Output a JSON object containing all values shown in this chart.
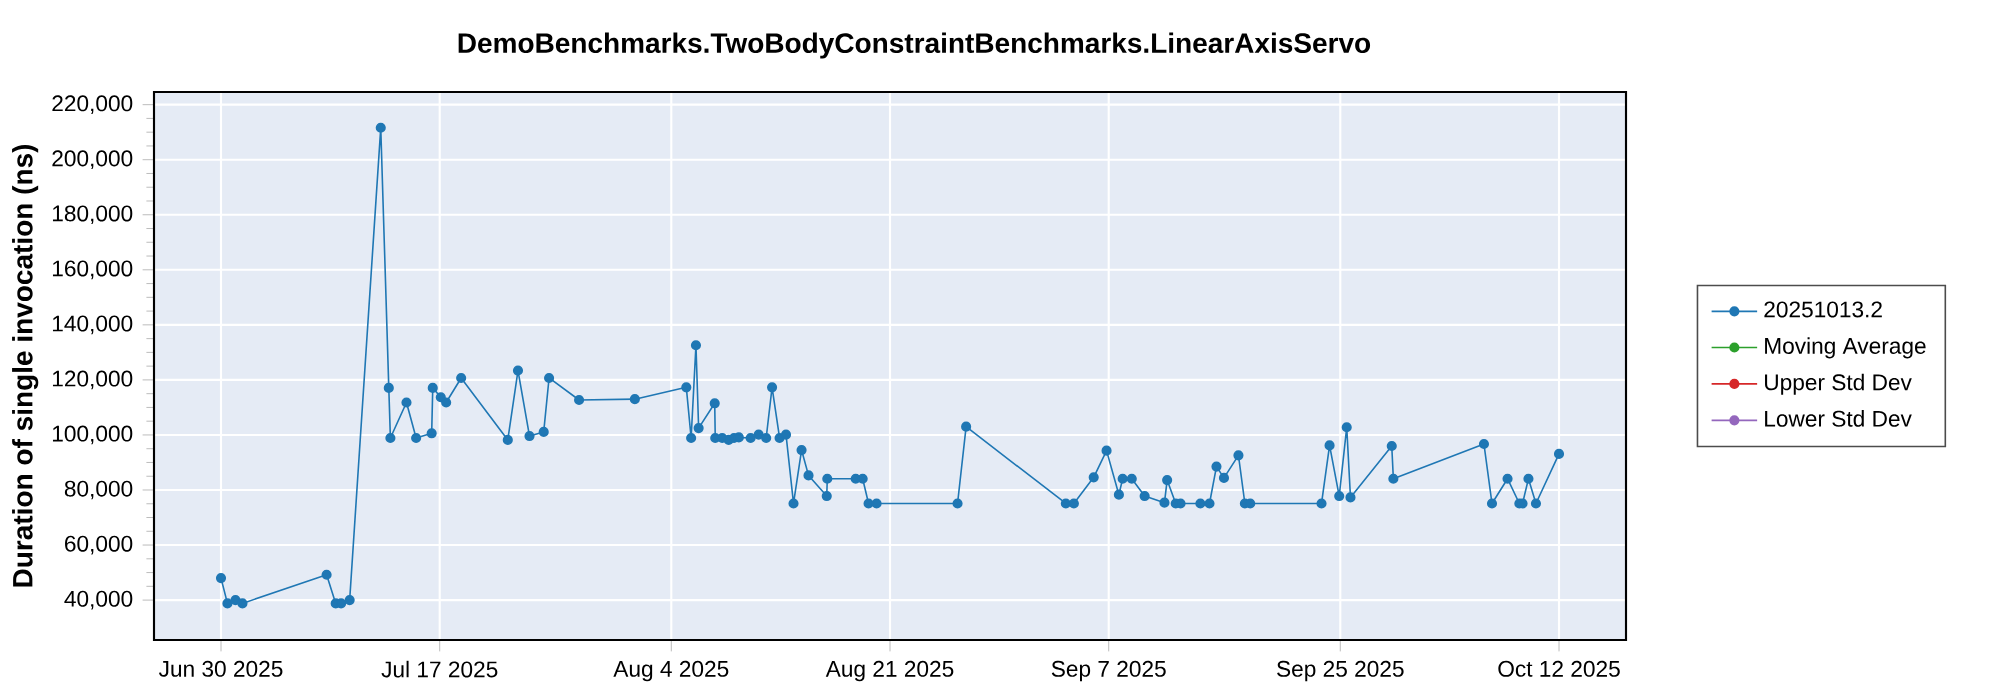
{
  "chart_data": {
    "type": "line",
    "title": "DemoBenchmarks.TwoBodyConstraintBenchmarks.LinearAxisServo",
    "ylabel": "Duration of single invocation (ns)",
    "xlim": [
      "2025-06-24T19:00",
      "2025-10-17T05:00"
    ],
    "ylim": [
      25500,
      224600
    ],
    "xticks": [
      {
        "value": "2025-06-30",
        "label": "Jun 30 2025"
      },
      {
        "value": "2025-07-17",
        "label": "Jul 17 2025"
      },
      {
        "value": "2025-08-04",
        "label": "Aug 4 2025"
      },
      {
        "value": "2025-08-21",
        "label": "Aug 21 2025"
      },
      {
        "value": "2025-09-07",
        "label": "Sep 7 2025"
      },
      {
        "value": "2025-09-25",
        "label": "Sep 25 2025"
      },
      {
        "value": "2025-10-12",
        "label": "Oct 12 2025"
      }
    ],
    "yticks": [
      {
        "value": 40000,
        "label": "40,000"
      },
      {
        "value": 60000,
        "label": "60,000"
      },
      {
        "value": 80000,
        "label": "80,000"
      },
      {
        "value": 100000,
        "label": "100,000"
      },
      {
        "value": 120000,
        "label": "120,000"
      },
      {
        "value": 140000,
        "label": "140,000"
      },
      {
        "value": 160000,
        "label": "160,000"
      },
      {
        "value": 180000,
        "label": "180,000"
      },
      {
        "value": 200000,
        "label": "200,000"
      },
      {
        "value": 220000,
        "label": "220,000"
      }
    ],
    "grid": true,
    "legend": "right",
    "marker": "circle",
    "series": [
      {
        "name": "20251013.2",
        "color": "#1f77b4",
        "x": [
          "2025-06-30T00:00",
          "2025-06-30T12:00",
          "2025-07-01T03:00",
          "2025-07-01T16:00",
          "2025-07-08T05:00",
          "2025-07-08T22:00",
          "2025-07-09T08:00",
          "2025-07-10T00:00",
          "2025-07-12T10:00",
          "2025-07-13T01:00",
          "2025-07-13T04:00",
          "2025-07-14T10:00",
          "2025-07-15T04:00",
          "2025-07-16T09:00",
          "2025-07-16T11:00",
          "2025-07-17T02:00",
          "2025-07-17T12:00",
          "2025-07-18T16:00",
          "2025-07-22T07:00",
          "2025-07-23T02:00",
          "2025-07-23T23:30",
          "2025-07-25T02:00",
          "2025-07-25T12:00",
          "2025-07-27T20:00",
          "2025-08-01T04:00",
          "2025-08-05T04:00",
          "2025-08-05T13:00",
          "2025-08-05T22:00",
          "2025-08-06T03:00",
          "2025-08-07T09:00",
          "2025-08-07T10:00",
          "2025-08-07T23:00",
          "2025-08-08T11:00",
          "2025-08-08T21:00",
          "2025-08-09T06:00",
          "2025-08-10T04:00",
          "2025-08-10T19:00",
          "2025-08-11T09:00",
          "2025-08-11T20:00",
          "2025-08-12T10:00",
          "2025-08-12T22:00",
          "2025-08-13T12:00",
          "2025-08-14T03:00",
          "2025-08-14T16:00",
          "2025-08-16T02:00",
          "2025-08-16T03:00",
          "2025-08-18T08:00",
          "2025-08-18T21:00",
          "2025-08-19T08:00",
          "2025-08-19T23:00",
          "2025-08-26T06:00",
          "2025-08-26T22:00",
          "2025-09-03T16:00",
          "2025-09-04T07:00",
          "2025-09-05T20:00",
          "2025-09-06T20:00",
          "2025-09-07T19:00",
          "2025-09-08T02:00",
          "2025-09-08T19:00",
          "2025-09-09T19:00",
          "2025-09-11T08:00",
          "2025-09-11T13:00",
          "2025-09-12T05:00",
          "2025-09-12T14:00",
          "2025-09-14T03:00",
          "2025-09-14T20:00",
          "2025-09-15T09:00",
          "2025-09-15T23:00",
          "2025-09-17T02:00",
          "2025-09-17T14:00",
          "2025-09-18T00:00",
          "2025-09-23T13:00",
          "2025-09-24T04:00",
          "2025-09-24T22:00",
          "2025-09-25T12:00",
          "2025-09-25T19:00",
          "2025-09-29T00:00",
          "2025-09-29T03:00",
          "2025-10-06T04:00",
          "2025-10-06T19:00",
          "2025-10-08T00:00",
          "2025-10-08T22:00",
          "2025-10-09T04:00",
          "2025-10-09T15:00",
          "2025-10-10T05:00",
          "2025-10-12T00:00"
        ],
        "values": [
          48000,
          38800,
          40000,
          38800,
          49200,
          38800,
          38800,
          40000,
          211600,
          117100,
          98900,
          111800,
          98900,
          100600,
          117100,
          113700,
          111800,
          120700,
          98200,
          123400,
          99600,
          101100,
          120700,
          112700,
          113000,
          117300,
          98900,
          132600,
          102500,
          111500,
          98900,
          98900,
          98200,
          98900,
          99100,
          98900,
          100100,
          98900,
          117300,
          98900,
          100100,
          75100,
          94500,
          85300,
          77800,
          84100,
          84100,
          84100,
          75100,
          75100,
          75100,
          103000,
          75100,
          75100,
          84600,
          94300,
          78300,
          84100,
          84100,
          77800,
          75400,
          83600,
          75100,
          75100,
          75100,
          75100,
          88500,
          84400,
          92600,
          75100,
          75100,
          75100,
          96200,
          77800,
          102800,
          77300,
          96000,
          84100,
          96700,
          75100,
          84100,
          75100,
          75100,
          84100,
          75100,
          93100
        ]
      },
      {
        "name": "Moving Average",
        "color": "#2ca02c"
      },
      {
        "name": "Upper Std Dev",
        "color": "#d62728"
      },
      {
        "name": "Lower Std Dev",
        "color": "#9467bd"
      }
    ]
  }
}
